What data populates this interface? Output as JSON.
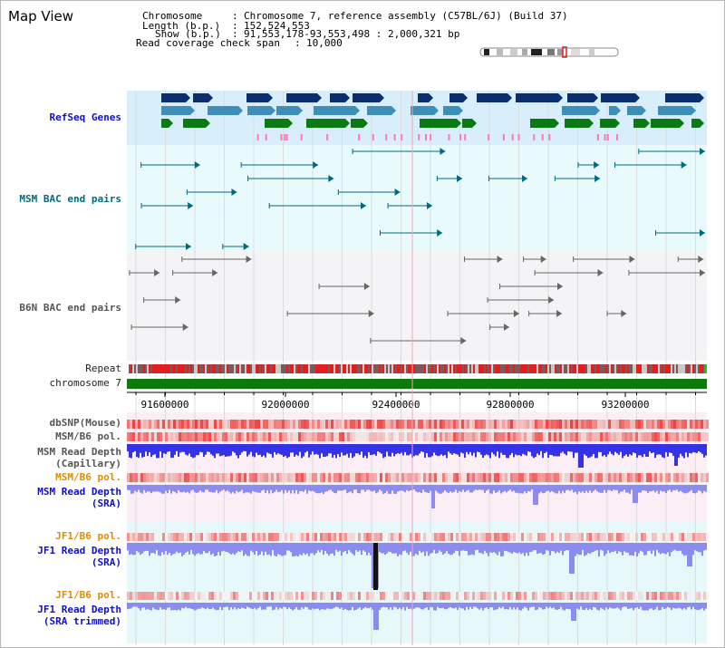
{
  "view_title": "Map View",
  "header": {
    "chromosome_label": "Chromosome",
    "chromosome_value": "Chromosome 7, reference assembly (C57BL/6J) (Build 37)",
    "length_label": "Length (b.p.)",
    "length_value": "152,524,553",
    "show_label": "Show (b.p.)",
    "show_value": "91,553,178-93,553,498 : 2,000,321 bp",
    "coverage_label": "Read coverage check span",
    "coverage_value": "10,000"
  },
  "tracks": {
    "refseq": "RefSeq Genes",
    "msm_bac": "MSM BAC end pairs",
    "b6n_bac": "B6N BAC end pairs",
    "repeat": "Repeat",
    "chromosome": "chromosome 7",
    "dbsnp": "dbSNP(Mouse)",
    "msm_b6_pol_1": "MSM/B6 pol.",
    "msm_depth_cap_1": "MSM Read Depth",
    "msm_depth_cap_2": "(Capillary)",
    "msm_b6_pol_2": "MSM/B6 pol.",
    "msm_depth_sra_1": "MSM Read Depth",
    "msm_depth_sra_2": "(SRA)",
    "jf1_b6_pol_1": "JF1/B6 pol.",
    "jf1_depth_sra_1": "JF1 Read Depth",
    "jf1_depth_sra_2": "(SRA)",
    "jf1_b6_pol_2": "JF1/B6 pol.",
    "jf1_depth_trim_1": "JF1 Read Depth",
    "jf1_depth_trim_2": "(SRA trimmed)"
  },
  "axis_ticks": [
    "91600000",
    "92000000",
    "92400000",
    "92800000",
    "93200000"
  ],
  "colors": {
    "refseq_dark": "#0b2f6e",
    "refseq_mid": "#3e8fb8",
    "refseq_green": "#0b7a14",
    "msm_bac": "#006a80",
    "b6n_bac": "#666666",
    "polymorphism": "#e0202a",
    "depth": "#3030e0",
    "chromosome_bar": "#0a7a0a"
  }
}
